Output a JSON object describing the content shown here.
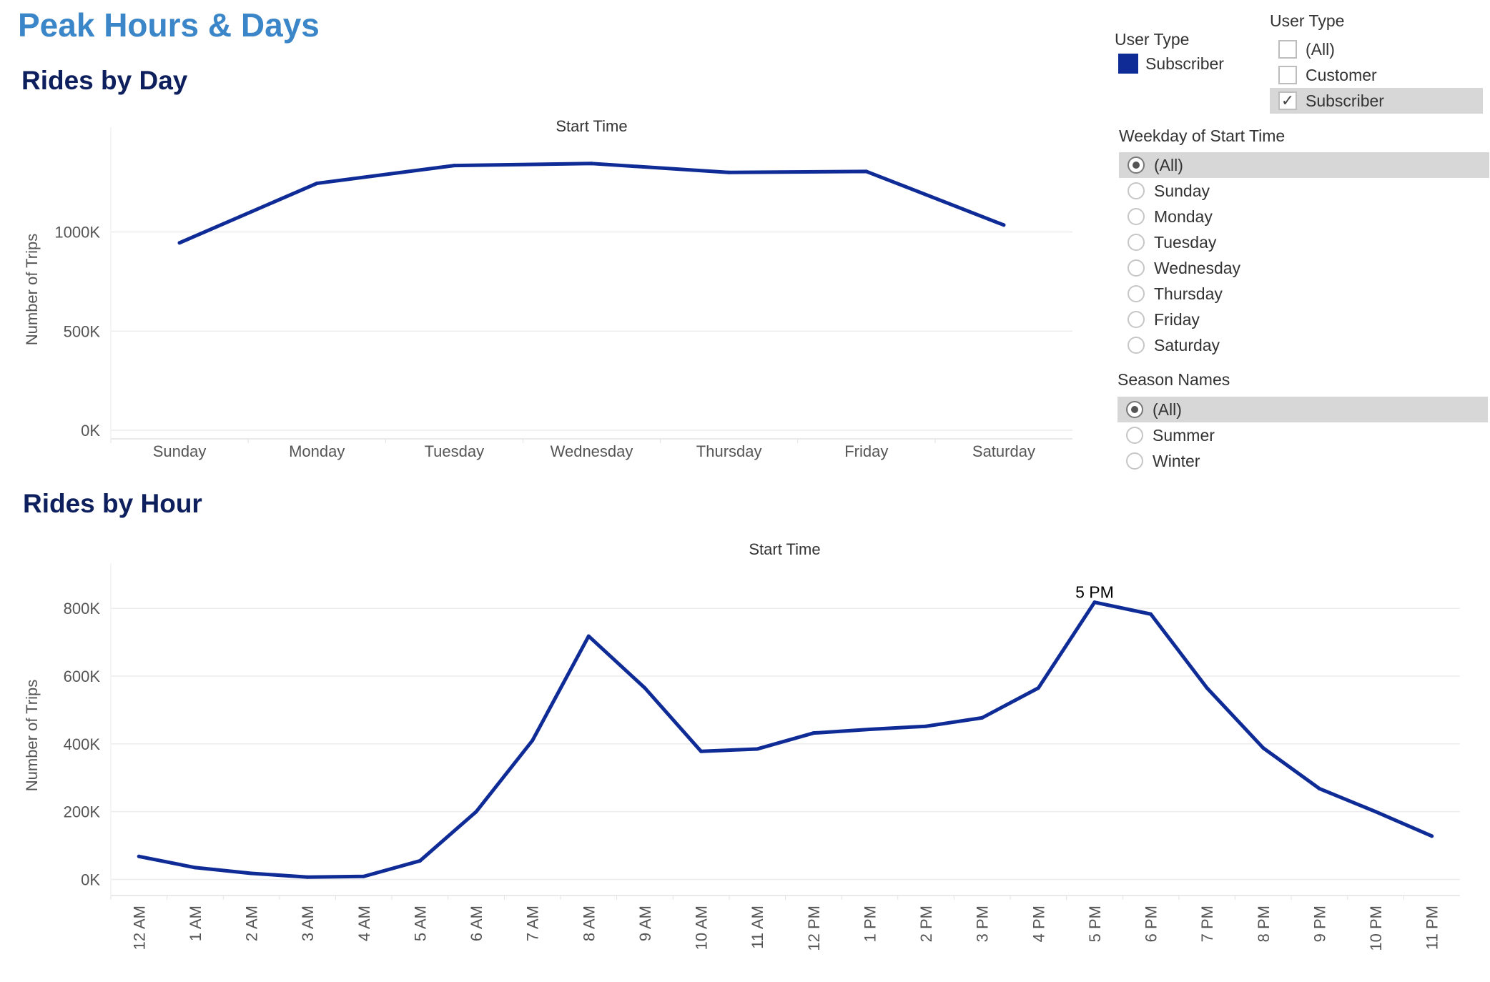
{
  "page_title": "Peak Hours & Days",
  "colors": {
    "series": "#0f2b96",
    "title": "#3a86c8",
    "section_title": "#0d1f5c",
    "grid": "#ececec",
    "selected_row": "#d7d7d7"
  },
  "legend": {
    "title": "User Type",
    "items": [
      {
        "label": "Subscriber",
        "color": "#0f2b96"
      }
    ]
  },
  "filters": {
    "user_type": {
      "title": "User Type",
      "control": "checkbox",
      "options": [
        {
          "label": "(All)",
          "checked": false
        },
        {
          "label": "Customer",
          "checked": false
        },
        {
          "label": "Subscriber",
          "checked": true
        }
      ]
    },
    "weekday": {
      "title": "Weekday of Start Time",
      "control": "radio",
      "selected": "(All)",
      "options": [
        "(All)",
        "Sunday",
        "Monday",
        "Tuesday",
        "Wednesday",
        "Thursday",
        "Friday",
        "Saturday"
      ]
    },
    "season": {
      "title": "Season Names",
      "control": "radio",
      "selected": "(All)",
      "options": [
        "(All)",
        "Summer",
        "Winter"
      ]
    }
  },
  "chart_data": [
    {
      "type": "line",
      "title": "Rides by Day",
      "x_header": "Start Time",
      "ylabel": "Number of Trips",
      "categories": [
        "Sunday",
        "Monday",
        "Tuesday",
        "Wednesday",
        "Thursday",
        "Friday",
        "Saturday"
      ],
      "series": [
        {
          "name": "Subscriber",
          "values": [
            945000,
            1245000,
            1335000,
            1345000,
            1300000,
            1305000,
            1035000
          ]
        }
      ],
      "ylim": [
        0,
        1420000
      ],
      "yticks": [
        0,
        500000,
        1000000
      ],
      "ytick_labels": [
        "0K",
        "500K",
        "1000K"
      ],
      "grid": true
    },
    {
      "type": "line",
      "title": "Rides by Hour",
      "x_header": "Start Time",
      "ylabel": "Number of Trips",
      "categories": [
        "12 AM",
        "1 AM",
        "2 AM",
        "3 AM",
        "4 AM",
        "5 AM",
        "6 AM",
        "7 AM",
        "8 AM",
        "9 AM",
        "10 AM",
        "11 AM",
        "12 PM",
        "1 PM",
        "2 PM",
        "3 PM",
        "4 PM",
        "5 PM",
        "6 PM",
        "7 PM",
        "8 PM",
        "9 PM",
        "10 PM",
        "11 PM"
      ],
      "series": [
        {
          "name": "Subscriber",
          "values": [
            68000,
            35000,
            18000,
            7000,
            9000,
            55000,
            200000,
            410000,
            718000,
            565000,
            378000,
            385000,
            432000,
            443000,
            452000,
            477000,
            565000,
            818000,
            783000,
            565000,
            388000,
            268000,
            200000,
            128000
          ]
        }
      ],
      "annotations": [
        {
          "category": "5 PM",
          "text": "5 PM"
        }
      ],
      "ylim": [
        -20000,
        870000
      ],
      "yticks": [
        0,
        200000,
        400000,
        600000,
        800000
      ],
      "ytick_labels": [
        "0K",
        "200K",
        "400K",
        "600K",
        "800K"
      ],
      "grid": true
    }
  ]
}
